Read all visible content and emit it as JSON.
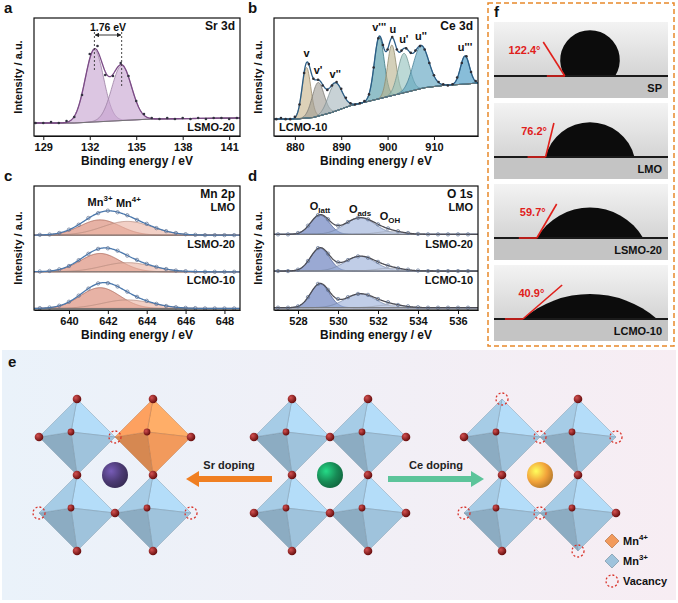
{
  "chart_data": [
    {
      "type": "line",
      "panel_label": "a",
      "title": "Sr 3d",
      "x_label": "Binding energy / eV",
      "y_label": "Intensity / a.u.",
      "xlim": [
        128.4,
        141.7
      ],
      "xticks": [
        129,
        132,
        135,
        138,
        141
      ],
      "ylim": [
        -0.03,
        1.15
      ],
      "tick_labels": "x",
      "legend": "lower right",
      "annotations": [
        {
          "text": "1.76 eV"
        }
      ],
      "series": [
        {
          "name": "LSMO-20",
          "marker": "dot",
          "color": "#333340",
          "x": [
            128.5,
            129,
            129.5,
            130,
            130.5,
            131,
            131.5,
            132,
            132.5,
            133,
            133.5,
            134,
            134.5,
            135,
            135.5,
            136,
            136.5,
            137,
            137.5,
            138,
            138.5,
            139,
            139.5,
            140,
            140.5,
            141,
            141.5
          ],
          "values": [
            0.1,
            0.1,
            0.11,
            0.1,
            0.12,
            0.16,
            0.38,
            0.79,
            0.87,
            0.58,
            0.57,
            0.7,
            0.57,
            0.32,
            0.19,
            0.15,
            0.14,
            0.15,
            0.14,
            0.15,
            0.14,
            0.15,
            0.14,
            0.15,
            0.15,
            0.14,
            0.15
          ],
          "background": {
            "x": [
              128.5,
              131,
              136,
              141.5
            ],
            "values": [
              0.1,
              0.1,
              0.14,
              0.15
            ]
          },
          "fit": {
            "color": "#7b4a86",
            "components": [
              {
                "center": 132.3,
                "height": 0.72,
                "fwhm": 1.4,
                "color": "#c7a3d0"
              },
              {
                "center": 134.06,
                "height": 0.55,
                "fwhm": 1.5,
                "color": "#c7a3d0"
              }
            ]
          }
        }
      ]
    },
    {
      "type": "line",
      "panel_label": "b",
      "title": "Ce 3d",
      "x_label": "Binding energy / eV",
      "y_label": "Intensity / a.u.",
      "xlim": [
        875.5,
        919.5
      ],
      "xticks": [
        880,
        890,
        900,
        910
      ],
      "ylim": [
        -0.05,
        1.0
      ],
      "tick_labels": "x",
      "legend": "lower left",
      "series": [
        {
          "name": "LCMO-10",
          "marker": "dot",
          "color": "#2e2e36",
          "x": [
            876,
            877,
            878,
            879,
            880,
            881,
            882,
            883,
            884,
            885,
            886,
            887,
            888,
            889,
            890,
            891,
            892,
            893,
            894,
            895,
            896,
            897,
            898,
            899,
            900,
            901,
            902,
            903,
            904,
            905,
            906,
            907,
            908,
            909,
            910,
            911,
            912,
            913,
            914,
            915,
            916,
            917,
            918,
            919
          ],
          "values": [
            0.1,
            0.11,
            0.1,
            0.1,
            0.12,
            0.23,
            0.51,
            0.59,
            0.46,
            0.45,
            0.4,
            0.36,
            0.4,
            0.43,
            0.37,
            0.29,
            0.24,
            0.23,
            0.24,
            0.26,
            0.32,
            0.56,
            0.82,
            0.76,
            0.72,
            0.83,
            0.72,
            0.71,
            0.73,
            0.69,
            0.71,
            0.75,
            0.72,
            0.6,
            0.49,
            0.43,
            0.41,
            0.4,
            0.41,
            0.47,
            0.6,
            0.66,
            0.52,
            0.44
          ],
          "background": {
            "x": [
              876,
              880,
              884,
              888,
              892,
              896,
              900,
              904,
              908,
              912,
              916,
              919
            ],
            "values": [
              0.1,
              0.1,
              0.115,
              0.16,
              0.22,
              0.26,
              0.3,
              0.34,
              0.38,
              0.4,
              0.41,
              0.42
            ]
          },
          "fit": {
            "color": "#2b5d86",
            "components": [
              {
                "name": "v",
                "center": 882.5,
                "height": 0.45,
                "fwhm": 2.2,
                "color": "#c8b48c"
              },
              {
                "name": "v'",
                "center": 885.0,
                "height": 0.3,
                "fwhm": 3.0,
                "color": "#9e9b93"
              },
              {
                "name": "v''",
                "center": 888.7,
                "height": 0.25,
                "fwhm": 3.5,
                "color": "#a7b7bd"
              },
              {
                "name": "v'''",
                "center": 898.2,
                "height": 0.55,
                "fwhm": 2.5,
                "color": "#4f9aa8"
              },
              {
                "name": "u",
                "center": 900.9,
                "height": 0.45,
                "fwhm": 2.2,
                "color": "#b9b38e"
              },
              {
                "name": "u'",
                "center": 903.5,
                "height": 0.35,
                "fwhm": 3.0,
                "color": "#93c2bd"
              },
              {
                "name": "u''",
                "center": 907.2,
                "height": 0.38,
                "fwhm": 4.0,
                "color": "#5aa2bf"
              },
              {
                "name": "u'''",
                "center": 916.7,
                "height": 0.25,
                "fwhm": 2.3,
                "color": "#3f95c2"
              }
            ]
          }
        }
      ]
    },
    {
      "type": "line",
      "panel_label": "c",
      "title": "Mn 2p",
      "x_label": "Binding energy / eV",
      "y_label": "Intensity / a.u.",
      "xlim": [
        638.2,
        648.8
      ],
      "xticks": [
        640,
        642,
        644,
        646,
        648
      ],
      "ylim": [
        0,
        1.2
      ],
      "tick_labels": "x",
      "legend": "upper right",
      "series": [
        {
          "name": "LMO",
          "marker": "circle",
          "color": "#5b6f8f",
          "x": [
            638.5,
            639,
            639.5,
            640,
            640.5,
            641,
            641.5,
            642,
            642.5,
            643,
            643.5,
            644,
            644.5,
            645,
            645.5,
            646,
            646.5,
            647,
            647.5,
            648,
            648.5
          ],
          "values": [
            0.06,
            0.07,
            0.12,
            0.23,
            0.39,
            0.61,
            0.77,
            0.85,
            0.8,
            0.7,
            0.55,
            0.42,
            0.28,
            0.18,
            0.12,
            0.08,
            0.06,
            0.05,
            0.05,
            0.05,
            0.05
          ],
          "background": {
            "x": [
              638.5,
              648.5
            ],
            "values": [
              0.05,
              0.05
            ]
          },
          "fit": {
            "color": "#4a78ad",
            "components": [
              {
                "name": "Mn3+",
                "center": 641.6,
                "height": 0.5,
                "fwhm": 2.4,
                "color": "#d9826e"
              },
              {
                "name": "Mn4+",
                "center": 643.0,
                "height": 0.45,
                "fwhm": 3.0,
                "color": "#eab3a3"
              }
            ]
          }
        },
        {
          "name": "LSMO-20",
          "marker": "circle",
          "color": "#5b6f8f",
          "x": [
            638.5,
            639,
            639.5,
            640,
            640.5,
            641,
            641.5,
            642,
            642.5,
            643,
            643.5,
            644,
            644.5,
            645,
            645.5,
            646,
            646.5,
            647,
            647.5,
            648,
            648.5
          ],
          "values": [
            0.06,
            0.08,
            0.13,
            0.24,
            0.43,
            0.64,
            0.8,
            0.82,
            0.74,
            0.58,
            0.44,
            0.31,
            0.21,
            0.14,
            0.09,
            0.07,
            0.06,
            0.05,
            0.05,
            0.05,
            0.05
          ],
          "background": {
            "x": [
              638.5,
              648.5
            ],
            "values": [
              0.05,
              0.05
            ]
          },
          "fit": {
            "color": "#4a78ad",
            "components": [
              {
                "center": 641.6,
                "height": 0.6,
                "fwhm": 2.4,
                "color": "#d9826e"
              },
              {
                "center": 643.0,
                "height": 0.3,
                "fwhm": 3.0,
                "color": "#eab3a3"
              }
            ]
          }
        },
        {
          "name": "LCMO-10",
          "marker": "circle",
          "color": "#5b6f8f",
          "x": [
            638.5,
            639,
            639.5,
            640,
            640.5,
            641,
            641.5,
            642,
            642.5,
            643,
            643.5,
            644,
            644.5,
            645,
            645.5,
            646,
            646.5,
            647,
            647.5,
            648,
            648.5
          ],
          "values": [
            0.06,
            0.08,
            0.14,
            0.27,
            0.47,
            0.7,
            0.87,
            0.88,
            0.77,
            0.6,
            0.43,
            0.3,
            0.2,
            0.13,
            0.09,
            0.07,
            0.06,
            0.05,
            0.05,
            0.05,
            0.05
          ],
          "background": {
            "x": [
              638.5,
              648.5
            ],
            "values": [
              0.05,
              0.05
            ]
          },
          "fit": {
            "color": "#4a78ad",
            "components": [
              {
                "center": 641.6,
                "height": 0.68,
                "fwhm": 2.4,
                "color": "#d9826e"
              },
              {
                "center": 643.0,
                "height": 0.28,
                "fwhm": 3.0,
                "color": "#eab3a3"
              }
            ]
          }
        }
      ]
    },
    {
      "type": "line",
      "panel_label": "d",
      "title": "O 1s",
      "x_label": "Binding energy / eV",
      "y_label": "Intensity / a.u.",
      "xlim": [
        526.8,
        537
      ],
      "xticks": [
        528,
        530,
        532,
        534,
        536
      ],
      "ylim": [
        0,
        0.8
      ],
      "tick_labels": "x",
      "legend": "upper right",
      "series": [
        {
          "name": "LMO",
          "marker": "circle",
          "color": "#5b6f8f",
          "x": [
            527,
            527.5,
            528,
            528.5,
            529,
            529.5,
            530,
            530.5,
            531,
            531.5,
            532,
            532.5,
            533,
            533.5,
            534,
            534.5,
            535,
            535.5,
            536,
            536.5
          ],
          "values": [
            0.05,
            0.05,
            0.08,
            0.24,
            0.47,
            0.38,
            0.24,
            0.32,
            0.41,
            0.38,
            0.27,
            0.18,
            0.12,
            0.08,
            0.06,
            0.05,
            0.05,
            0.05,
            0.05,
            0.05
          ],
          "background": {
            "x": [
              527,
              537
            ],
            "values": [
              0.05,
              0.05
            ]
          },
          "fit": {
            "color": "#4d4d55",
            "components": [
              {
                "name": "Olatt",
                "center": 529.1,
                "height": 0.42,
                "fwhm": 1.1,
                "color": "#5c74b8"
              },
              {
                "name": "Oads",
                "center": 531.1,
                "height": 0.36,
                "fwhm": 1.8,
                "color": "#9aaed8"
              },
              {
                "name": "OOH",
                "center": 532.6,
                "height": 0.06,
                "fwhm": 1.6,
                "color": "#c9d3ea"
              }
            ]
          }
        },
        {
          "name": "LSMO-20",
          "marker": "circle",
          "color": "#5b6f8f",
          "x": [
            527,
            527.5,
            528,
            528.5,
            529,
            529.5,
            530,
            530.5,
            531,
            531.5,
            532,
            532.5,
            533,
            533.5,
            534,
            534.5,
            535,
            535.5,
            536,
            536.5
          ],
          "values": [
            0.05,
            0.05,
            0.08,
            0.27,
            0.55,
            0.43,
            0.24,
            0.29,
            0.37,
            0.34,
            0.25,
            0.17,
            0.11,
            0.08,
            0.06,
            0.05,
            0.05,
            0.05,
            0.05,
            0.05
          ],
          "background": {
            "x": [
              527,
              537
            ],
            "values": [
              0.05,
              0.05
            ]
          },
          "fit": {
            "color": "#4d4d55",
            "components": [
              {
                "center": 529.1,
                "height": 0.5,
                "fwhm": 1.1,
                "color": "#5c74b8"
              },
              {
                "center": 531.1,
                "height": 0.32,
                "fwhm": 1.8,
                "color": "#9aaed8"
              },
              {
                "center": 532.6,
                "height": 0.06,
                "fwhm": 1.6,
                "color": "#c9d3ea"
              }
            ]
          }
        },
        {
          "name": "LCMO-10",
          "marker": "circle",
          "color": "#5b6f8f",
          "x": [
            527,
            527.5,
            528,
            528.5,
            529,
            529.5,
            530,
            530.5,
            531,
            531.5,
            532,
            532.5,
            533,
            533.5,
            534,
            534.5,
            535,
            535.5,
            536,
            536.5
          ],
          "values": [
            0.05,
            0.05,
            0.08,
            0.28,
            0.57,
            0.44,
            0.24,
            0.28,
            0.35,
            0.33,
            0.24,
            0.17,
            0.11,
            0.08,
            0.06,
            0.05,
            0.05,
            0.05,
            0.05,
            0.05
          ],
          "background": {
            "x": [
              527,
              537
            ],
            "values": [
              0.05,
              0.05
            ]
          },
          "fit": {
            "color": "#4d4d55",
            "components": [
              {
                "center": 529.1,
                "height": 0.52,
                "fwhm": 1.1,
                "color": "#5c74b8"
              },
              {
                "center": 531.1,
                "height": 0.3,
                "fwhm": 1.8,
                "color": "#9aaed8"
              },
              {
                "center": 532.6,
                "height": 0.06,
                "fwhm": 1.6,
                "color": "#c9d3ea"
              }
            ]
          }
        }
      ]
    }
  ],
  "schematic": {
    "panel_label": "e",
    "structures": [
      {
        "color": "#4b3a73"
      },
      {
        "color": "#178a55"
      },
      {
        "color": "#f2a23a"
      }
    ],
    "arrows": [
      {
        "label": "Sr doping",
        "color": "#f07f22"
      },
      {
        "label": "Ce doping",
        "color": "#5cc49a"
      }
    ],
    "legend": [
      {
        "label": "Mn4+",
        "marker": "diamond",
        "color": "#f29a5c"
      },
      {
        "label": "Mn3+",
        "marker": "diamond",
        "color": "#9fc3dc"
      },
      {
        "label": "Vacancy",
        "marker": "dashed-circle",
        "color": "#d9342b"
      }
    ]
  },
  "contact_angles": {
    "panel_label": "f",
    "samples": [
      {
        "name": "SP",
        "angle": 122.4,
        "label": "122.4°"
      },
      {
        "name": "LMO",
        "angle": 76.2,
        "label": "76.2°"
      },
      {
        "name": "LSMO-20",
        "angle": 59.7,
        "label": "59.7°"
      },
      {
        "name": "LCMO-10",
        "angle": 40.9,
        "label": "40.9°"
      }
    ]
  }
}
